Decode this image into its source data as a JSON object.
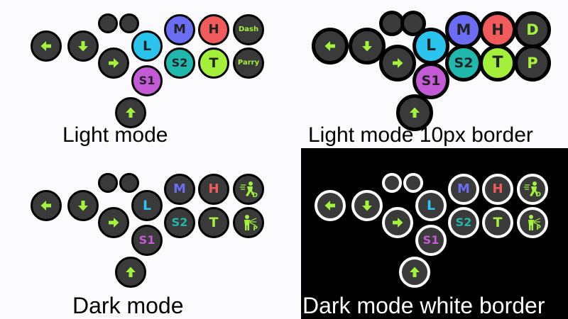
{
  "colors": {
    "arrow": "#a3f23c",
    "dark_button": "#3a3a3a",
    "outline": "#000000",
    "white_border": "#ffffff",
    "L": "#2ac4ee",
    "M": "#6b6ef5",
    "H": "#f25b5b",
    "S1": "#c45ad6",
    "S2": "#20b7ac",
    "T": "#a4ef3a",
    "special_text": "#a3f23c"
  },
  "labels": {
    "L": "L",
    "M": "M",
    "H": "H",
    "S1": "S1",
    "S2": "S2",
    "T": "T",
    "dash": "Dash",
    "parry": "Parry",
    "d": "D",
    "p": "P"
  },
  "icons": {
    "left": "arrow-left-icon",
    "down": "arrow-down-icon",
    "right": "arrow-right-icon",
    "up": "arrow-up-icon",
    "dash": "dash-runner-icon",
    "parry": "parry-figure-icon"
  },
  "layouts": [
    {
      "id": "light",
      "caption": "Light mode",
      "style": "light",
      "border": "thin"
    },
    {
      "id": "light10",
      "caption": "Light mode 10px border",
      "style": "light",
      "border": "thick",
      "short_specials": true
    },
    {
      "id": "dark",
      "caption": "Dark mode",
      "style": "dark",
      "border": "thin"
    },
    {
      "id": "darkw",
      "caption": "Dark mode white border",
      "style": "dark",
      "border": "white"
    }
  ]
}
